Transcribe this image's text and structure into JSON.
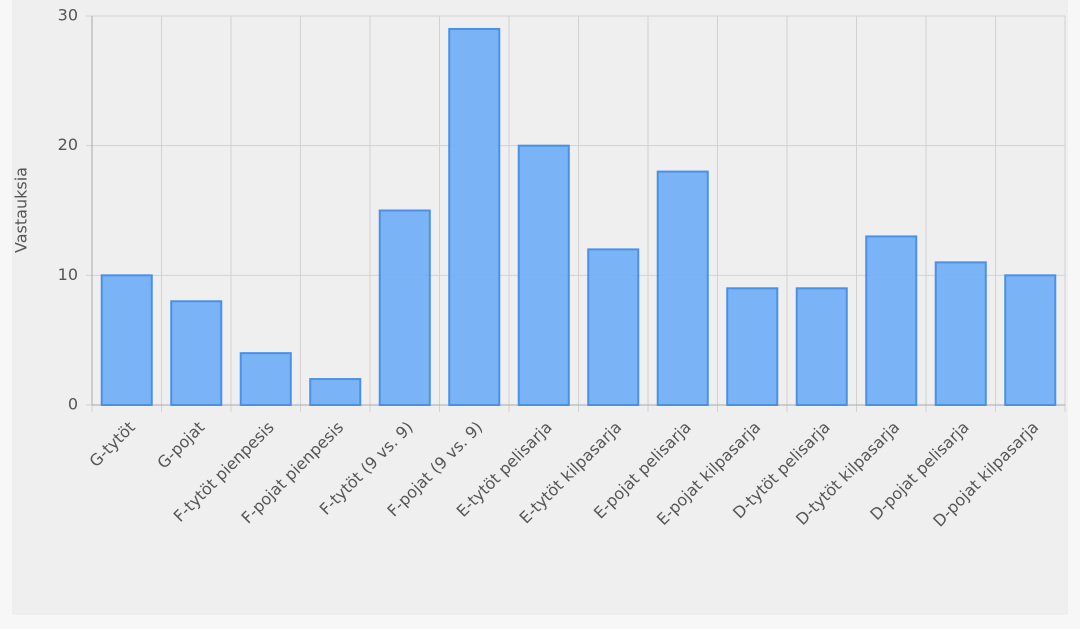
{
  "chart_data": {
    "type": "bar",
    "y_label": "Vastauksia",
    "categories": [
      "G-tytöt",
      "G-pojat",
      "F-tytöt pienpesis",
      "F-pojat pienpesis",
      "F-tytöt (9 vs. 9)",
      "F-pojat (9 vs. 9)",
      "E-tytöt pelisarja",
      "E-tytöt kilpasarja",
      "E-pojat pelisarja",
      "E-pojat kilpasarja",
      "D-tytöt pelisarja",
      "D-tytöt kilpasarja",
      "D-pojat pelisarja",
      "D-pojat kilpasarja"
    ],
    "values": [
      10,
      8,
      4,
      2,
      15,
      29,
      20,
      12,
      18,
      9,
      9,
      13,
      11,
      10
    ],
    "color": "#74b0f5",
    "ylim": [
      0,
      30
    ],
    "yticks": [
      0,
      10,
      20,
      30
    ],
    "grid": true
  }
}
